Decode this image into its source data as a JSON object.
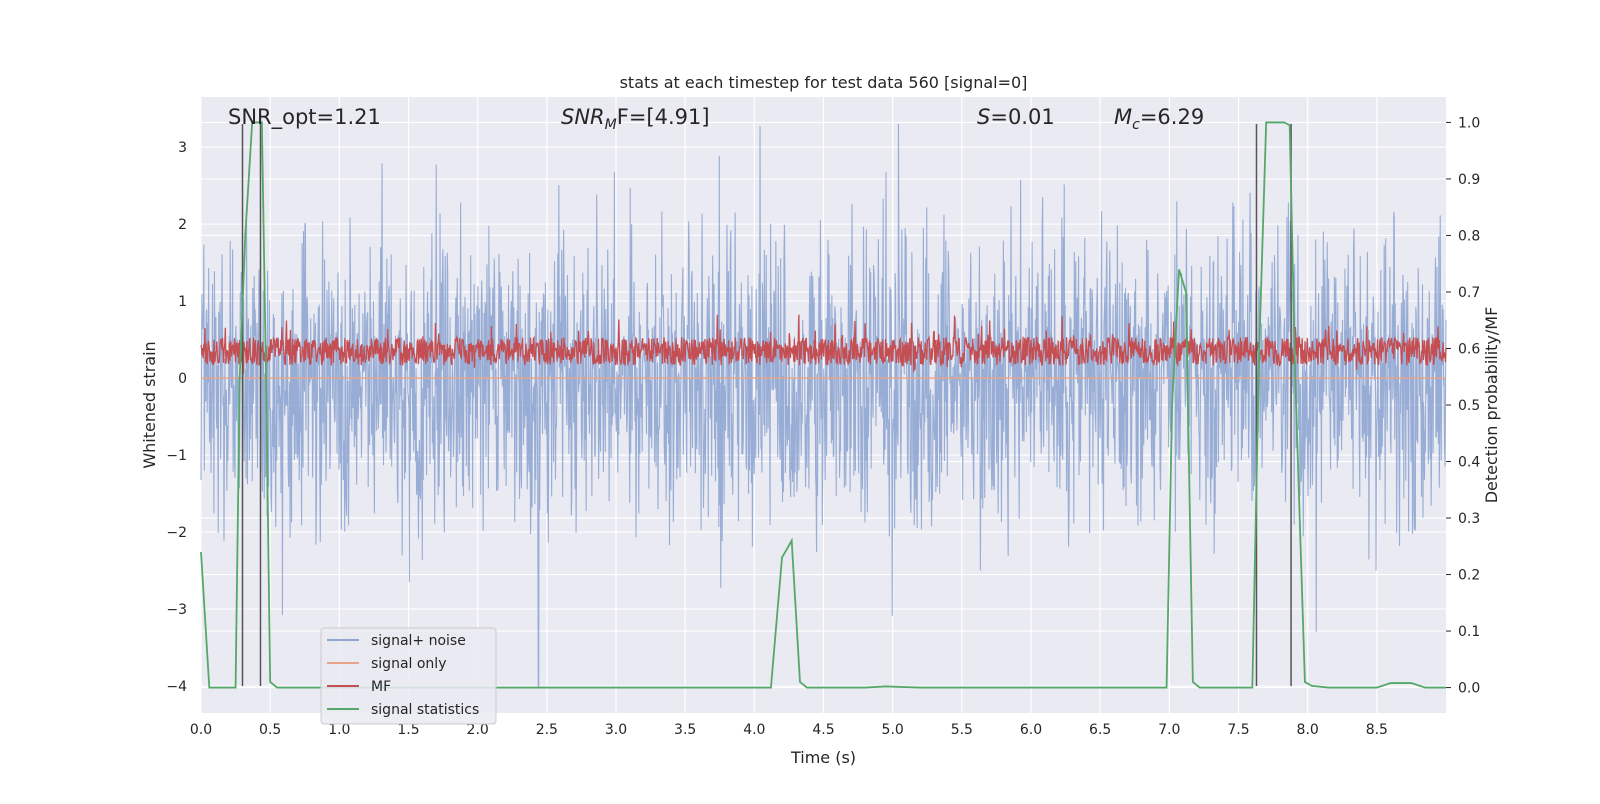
{
  "chart_data": {
    "type": "line",
    "title": "stats at each timestep for test data 560 [signal=0]",
    "xlabel": "Time (s)",
    "ylabel_left": "Whitened strain",
    "ylabel_right": "Detection probability/MF",
    "xlim": [
      0.0,
      9.0
    ],
    "ylim_left": [
      -4.35,
      3.65
    ],
    "ylim_right": [
      -0.045,
      1.045
    ],
    "x_ticks": [
      "0.0",
      "0.5",
      "1.0",
      "1.5",
      "2.0",
      "2.5",
      "3.0",
      "3.5",
      "4.0",
      "4.5",
      "5.0",
      "5.5",
      "6.0",
      "6.5",
      "7.0",
      "7.5",
      "8.0",
      "8.5"
    ],
    "y_left_ticks": [
      "3",
      "2",
      "1",
      "0",
      "−1",
      "−2",
      "−3",
      "−4"
    ],
    "y_right_ticks": [
      "1.0",
      "0.9",
      "0.8",
      "0.7",
      "0.6",
      "0.5",
      "0.4",
      "0.3",
      "0.2",
      "0.1",
      "0.0"
    ],
    "annotations": {
      "snr_opt": "SNR_opt=1.21",
      "snr_mf_main": "SNR",
      "snr_mf_sub": "M",
      "snr_mf_rest": "F=[4.91]",
      "s_main": "S",
      "s_rest": "=0.01",
      "mc_main": "M",
      "mc_sub": "c",
      "mc_rest": "=6.29"
    },
    "vertical_markers_s": [
      0.3,
      0.43,
      7.63,
      7.88
    ],
    "legend": {
      "position": "lower-left",
      "entries": [
        "signal+ noise",
        "signal only",
        "MF",
        "signal statistics"
      ]
    },
    "series": [
      {
        "name": "signal+ noise",
        "axis": "left",
        "color": "#8fa6d1",
        "range": [
          -4.0,
          3.3
        ],
        "note": "dense noise trace, ~±1.6 typical"
      },
      {
        "name": "signal only",
        "axis": "left",
        "color": "#e8a48a",
        "values_const": 0.0
      },
      {
        "name": "MF",
        "axis": "right",
        "color": "#c44e52",
        "range": [
          0.55,
          0.65
        ]
      },
      {
        "name": "signal statistics",
        "axis": "right",
        "color": "#55a868",
        "x": [
          0.0,
          0.06,
          0.12,
          0.25,
          0.28,
          0.32,
          0.37,
          0.41,
          0.44,
          0.47,
          0.5,
          0.55,
          1.0,
          2.0,
          3.0,
          4.0,
          4.12,
          4.2,
          4.27,
          4.33,
          4.38,
          4.5,
          4.8,
          4.95,
          5.2,
          6.0,
          6.98,
          7.02,
          7.07,
          7.12,
          7.17,
          7.22,
          7.3,
          7.5,
          7.6,
          7.65,
          7.7,
          7.75,
          7.8,
          7.83,
          7.87,
          7.91,
          7.98,
          8.03,
          8.15,
          8.5,
          8.6,
          8.75,
          8.85,
          9.0
        ],
        "y": [
          0.24,
          0.0,
          0.0,
          0.0,
          0.55,
          0.8,
          1.0,
          1.0,
          1.0,
          0.55,
          0.01,
          0.0,
          0.0,
          0.0,
          0.0,
          0.0,
          0.0,
          0.23,
          0.26,
          0.01,
          0.0,
          0.0,
          0.0,
          0.002,
          0.0,
          0.0,
          0.0,
          0.5,
          0.74,
          0.7,
          0.01,
          0.0,
          0.0,
          0.0,
          0.0,
          0.6,
          1.0,
          1.0,
          1.0,
          1.0,
          0.995,
          0.55,
          0.01,
          0.003,
          0.0,
          0.0,
          0.008,
          0.008,
          0.0,
          0.0
        ]
      }
    ]
  }
}
